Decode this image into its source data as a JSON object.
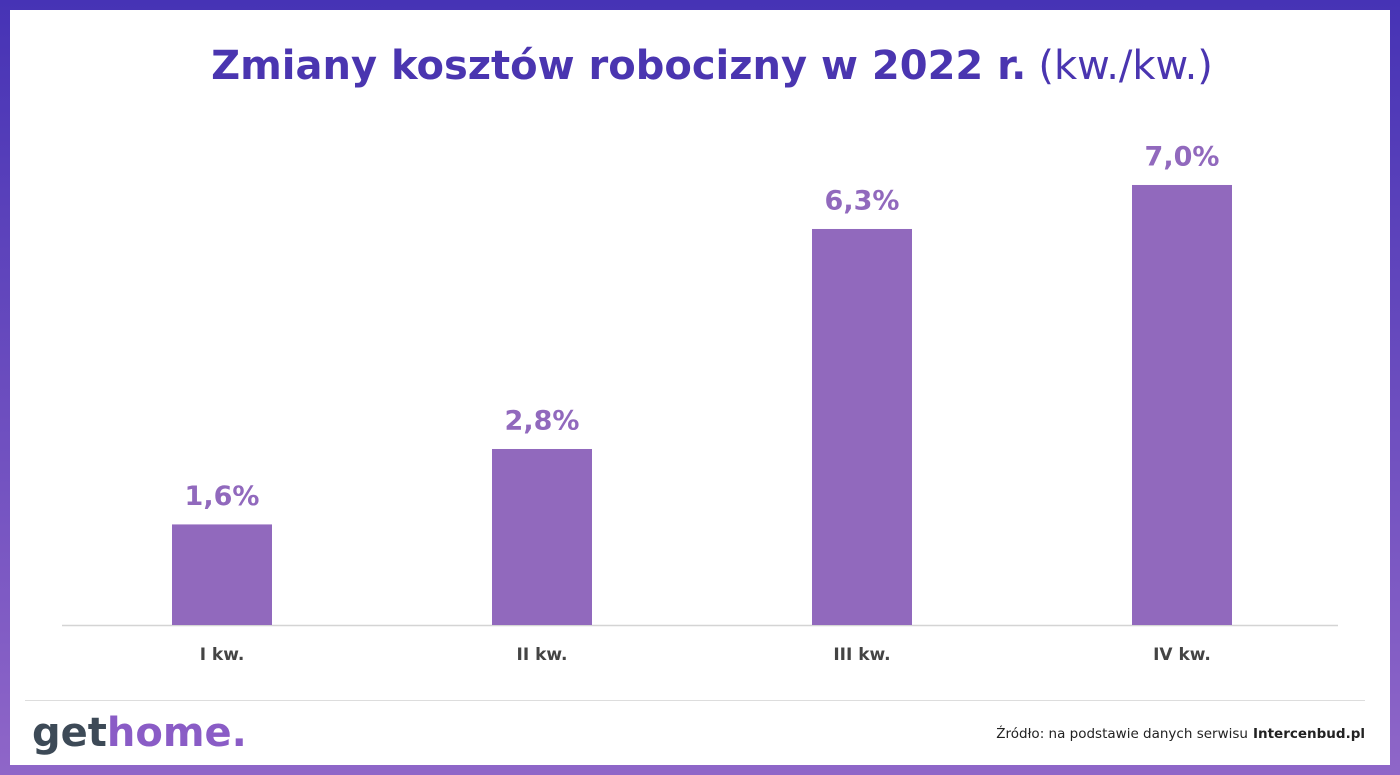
{
  "chart_data": {
    "type": "bar",
    "title": "Zmiany kosztów robocizny w 2022 r.",
    "subtitle": "(kw./kw.)",
    "categories": [
      "I kw.",
      "II kw.",
      "III kw.",
      "IV kw."
    ],
    "values": [
      1.6,
      2.8,
      6.3,
      7.0
    ],
    "value_labels": [
      "1,6%",
      "2,8%",
      "6,3%",
      "7,0%"
    ],
    "color": "#9169bd"
  },
  "footer": {
    "logo": [
      "get",
      "home."
    ],
    "source": "Źródło: na podstawie danych serwisu",
    "source_name": "Intercenbud.pl"
  }
}
